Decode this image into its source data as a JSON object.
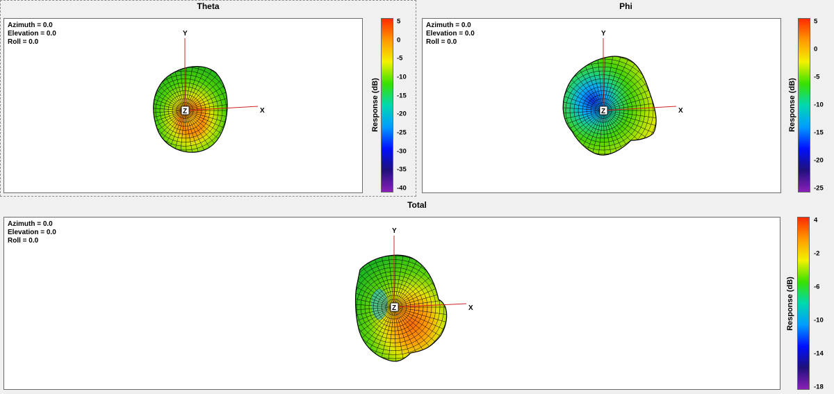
{
  "panels": {
    "theta": {
      "title": "Theta",
      "view": {
        "azimuth": "Azimuth = 0.0",
        "elevation": "Elevation = 0.0",
        "roll": "Roll = 0.0"
      },
      "colorbar_label": "Response (dB)",
      "ticks": [
        "5",
        "0",
        "-5",
        "-10",
        "-15",
        "-20",
        "-25",
        "-30",
        "-35",
        "-40"
      ]
    },
    "phi": {
      "title": "Phi",
      "view": {
        "azimuth": "Azimuth = 0.0",
        "elevation": "Elevation = 0.0",
        "roll": "Roll = 0.0"
      },
      "colorbar_label": "Response (dB)",
      "ticks": [
        "5",
        "0",
        "-5",
        "-10",
        "-15",
        "-20",
        "-25"
      ]
    },
    "total": {
      "title": "Total",
      "view": {
        "azimuth": "Azimuth = 0.0",
        "elevation": "Elevation = 0.0",
        "roll": "Roll = 0.0"
      },
      "colorbar_label": "Response (dB)",
      "ticks": [
        "4",
        "-2",
        "-6",
        "-10",
        "-14",
        "-18"
      ]
    }
  },
  "axes": {
    "x": "X",
    "y": "Y",
    "z": "Z"
  },
  "colors": {
    "axis_line": "#d21f1f",
    "colormap": [
      "#ff2a00",
      "#ff9a00",
      "#f2f200",
      "#38e000",
      "#00d8b0",
      "#009cff",
      "#0010ff",
      "#20107a",
      "#8a20b8"
    ]
  }
}
